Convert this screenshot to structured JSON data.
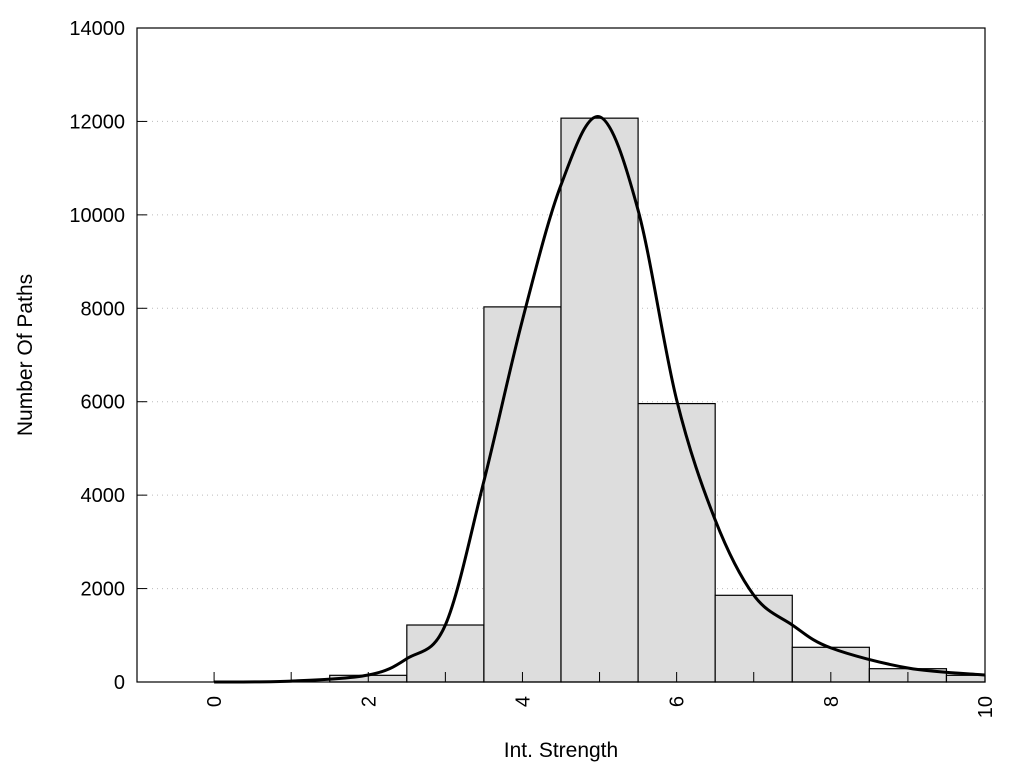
{
  "chart_data": {
    "type": "bar",
    "title": "",
    "xlabel": "Int. Strength",
    "ylabel": "Number Of Paths",
    "xlim": [
      -1,
      10
    ],
    "ylim": [
      0,
      14000
    ],
    "grid": "horizontal dotted",
    "x_ticks": [
      "0",
      "2",
      "4",
      "6",
      "8",
      "10"
    ],
    "y_ticks": [
      "0",
      "2000",
      "4000",
      "6000",
      "8000",
      "10000",
      "12000",
      "14000"
    ],
    "bins": [
      0,
      1,
      2,
      3,
      4,
      5,
      6,
      7,
      8,
      9,
      10
    ],
    "values": [
      0,
      0,
      143,
      1220,
      8030,
      12070,
      5960,
      1856,
      743,
      285,
      143
    ],
    "bar_color": "#dddddd",
    "fit_curve": {
      "x": [
        0,
        1,
        2,
        2.5,
        3,
        3.5,
        4,
        4.5,
        5,
        5.5,
        6,
        6.5,
        7,
        7.5,
        8,
        9,
        10
      ],
      "y": [
        0,
        20,
        150,
        500,
        1220,
        4300,
        7750,
        10640,
        12100,
        10100,
        6040,
        3470,
        1860,
        1220,
        730,
        300,
        150
      ]
    }
  }
}
